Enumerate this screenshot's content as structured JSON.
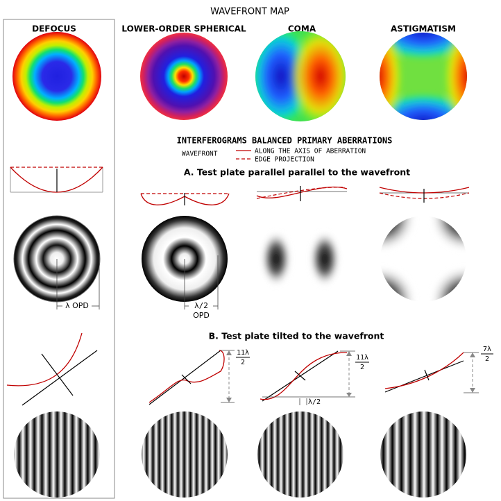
{
  "title": "WAVEFRONT MAP",
  "columns": [
    "DEFOCUS",
    "LOWER-ORDER SPHERICAL",
    "COMA",
    "ASTIGMATISM"
  ],
  "interferograms": {
    "title": "INTERFEROGRAMS BALANCED PRIMARY ABERRATIONS",
    "legend": {
      "label": "WAVEFRONT",
      "items": [
        "ALONG THE AXIS OF ABERRATION",
        "EDGE PROJECTION"
      ]
    }
  },
  "section_a": {
    "title": "A. Test plate parallel parallel to the wavefront",
    "labels": [
      "λ OPD",
      "λ/2",
      "OPD"
    ]
  },
  "section_b": {
    "title": "B. Test plate tilted to the wavefront",
    "labels": [
      {
        "numerator": "11λ",
        "denominator": "2"
      },
      {
        "numerator": "11λ",
        "denominator": "2"
      },
      "λ/2",
      {
        "numerator": "7λ",
        "denominator": "2"
      }
    ]
  }
}
